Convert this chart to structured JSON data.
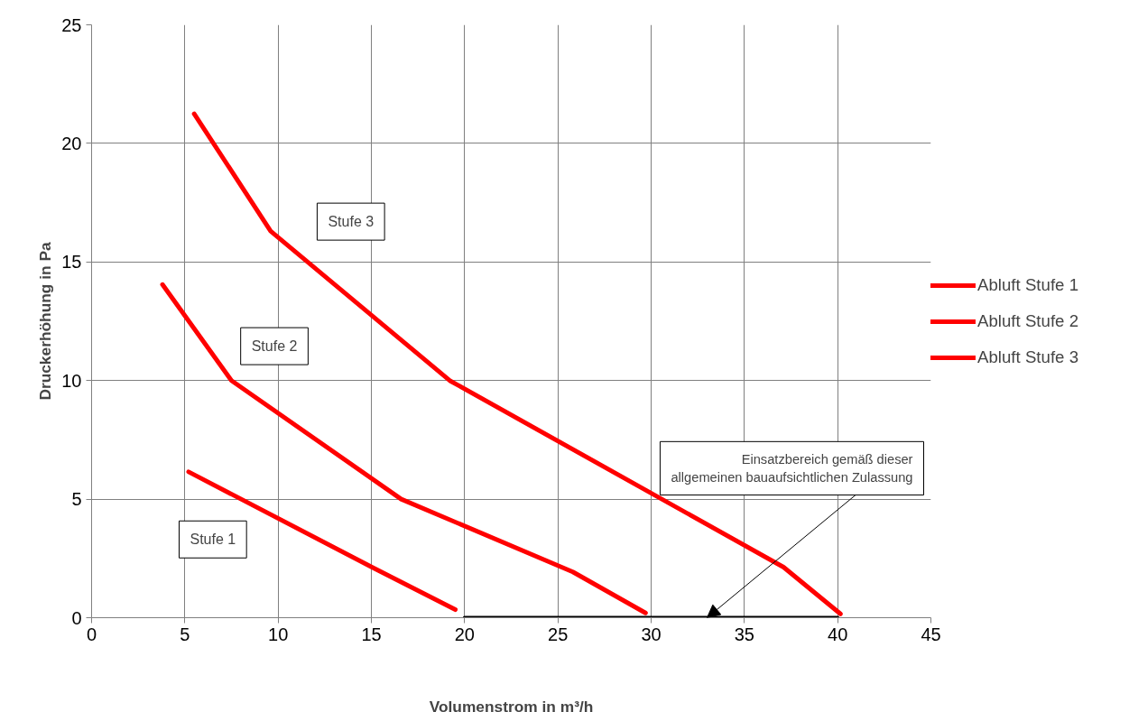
{
  "chart_data": {
    "type": "line",
    "xlabel": "Volumenstrom in m³/h",
    "ylabel": "Druckerhöhung in Pa",
    "xlim": [
      0,
      45
    ],
    "ylim": [
      0,
      25
    ],
    "xticks": [
      0,
      5,
      10,
      15,
      20,
      25,
      30,
      35,
      40,
      45
    ],
    "yticks": [
      0,
      5,
      10,
      15,
      20,
      25
    ],
    "grid": true,
    "legend": "right",
    "line_style": "solid",
    "marker": "none",
    "series": [
      {
        "name": "Abluft Stufe 1",
        "color": "#ff0000",
        "x": [
          5.2,
          15.1,
          19.5
        ],
        "values": [
          6.15,
          2.1,
          0.34
        ]
      },
      {
        "name": "Abluft Stufe 2",
        "color": "#ff0000",
        "x": [
          3.8,
          7.5,
          16.6,
          25.8,
          29.7
        ],
        "values": [
          14.05,
          10,
          5,
          1.93,
          0.2
        ]
      },
      {
        "name": "Abluft Stufe 3",
        "color": "#ff0000",
        "x": [
          5.5,
          9.6,
          19.2,
          37.1,
          40.15
        ],
        "values": [
          21.25,
          16.3,
          10,
          2.13,
          0.16
        ]
      },
      {
        "color": "#000000",
        "x": [
          20,
          40
        ],
        "values": [
          0,
          0
        ]
      }
    ],
    "annotations": [
      "Stufe 1",
      "Stufe 2",
      "Stufe 3",
      {
        "text": "Einsatzbereich gemäß dieser\nallgemeinen bauaufsichtlichen Zulassung",
        "x": 33,
        "y": 0
      }
    ]
  }
}
